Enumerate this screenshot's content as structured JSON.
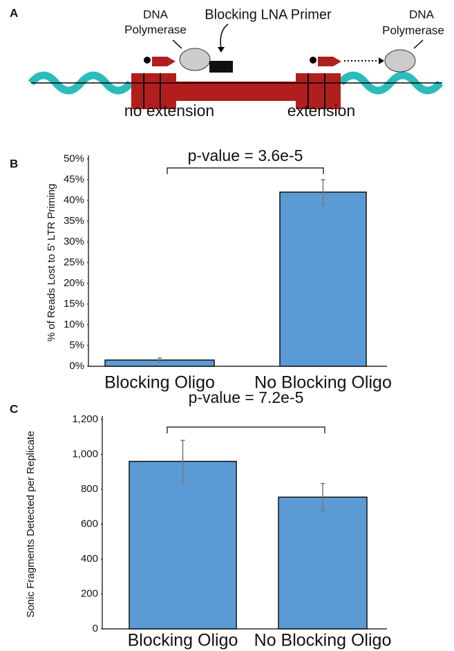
{
  "diagram": {
    "panel": "A",
    "left_enzyme": [
      "DNA",
      "Polymerase"
    ],
    "right_enzyme": [
      "DNA",
      "Polymerase"
    ],
    "primer_label": "Blocking LNA Primer",
    "left_caption": "no extension",
    "right_caption": "extension"
  },
  "chart_data": [
    {
      "type": "bar",
      "panel": "B",
      "ylabel": "% of Reads Lost to 5' LTR Priming",
      "annotation": "p-value = 3.6e-5",
      "categories": [
        "Blocking Oligo",
        "No Blocking Oligo"
      ],
      "values": [
        1.5,
        42
      ],
      "errors": [
        0.5,
        3
      ],
      "color": "#5b9bd5",
      "ylim": [
        0,
        50
      ],
      "yticks": [
        {
          "value": 0,
          "label": "0%"
        },
        {
          "value": 5,
          "label": "5%"
        },
        {
          "value": 10,
          "label": "10%"
        },
        {
          "value": 15,
          "label": "15%"
        },
        {
          "value": 20,
          "label": "20%"
        },
        {
          "value": 25,
          "label": "25%"
        },
        {
          "value": 30,
          "label": "30%"
        },
        {
          "value": 35,
          "label": "35%"
        },
        {
          "value": 40,
          "label": "40%"
        },
        {
          "value": 45,
          "label": "45%"
        },
        {
          "value": 50,
          "label": "50%"
        }
      ]
    },
    {
      "type": "bar",
      "panel": "C",
      "ylabel": "Sonic Fragments Detected per Replicate",
      "annotation": "p-value = 7.2e-5",
      "categories": [
        "Blocking Oligo",
        "No Blocking Oligo"
      ],
      "values": [
        960,
        755
      ],
      "errors": [
        120,
        78
      ],
      "color": "#5b9bd5",
      "ylim": [
        0,
        1200
      ],
      "yticks": [
        0,
        200,
        400,
        600,
        800,
        {
          "value": 1000,
          "label": "1,000"
        },
        {
          "value": 1200,
          "label": "1,200"
        }
      ]
    }
  ]
}
